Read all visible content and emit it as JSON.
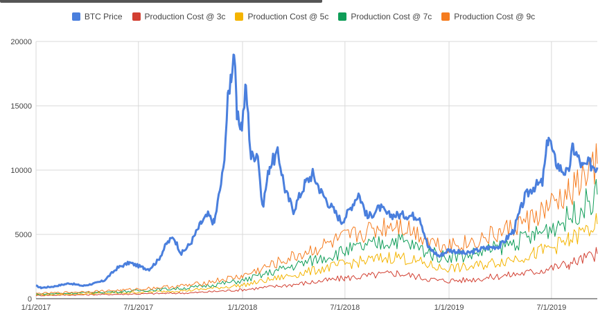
{
  "chart_data": {
    "type": "line",
    "title": "",
    "xlabel": "",
    "ylabel": "",
    "ylim": [
      0,
      20000
    ],
    "xlim": [
      "2017-01-01",
      "2019-09-20"
    ],
    "y_ticks": [
      "0",
      "5000",
      "10000",
      "15000",
      "20000"
    ],
    "x_ticks": [
      {
        "date": "2017-01-01",
        "label": "1/1/2017"
      },
      {
        "date": "2017-07-01",
        "label": "7/1/2017"
      },
      {
        "date": "2018-01-01",
        "label": "1/1/2018"
      },
      {
        "date": "2018-07-01",
        "label": "7/1/2018"
      },
      {
        "date": "2019-01-01",
        "label": "1/1/2019"
      },
      {
        "date": "2019-07-01",
        "label": "7/1/2019"
      }
    ],
    "grid": true,
    "legend_position": "top",
    "series": [
      {
        "name": "BTC Price",
        "color": "#4a7fdd",
        "points": [
          [
            "2017-01-01",
            1000
          ],
          [
            "2017-01-10",
            850
          ],
          [
            "2017-02-01",
            950
          ],
          [
            "2017-03-01",
            1200
          ],
          [
            "2017-03-25",
            1000
          ],
          [
            "2017-04-15",
            1200
          ],
          [
            "2017-05-01",
            1400
          ],
          [
            "2017-05-25",
            2400
          ],
          [
            "2017-06-15",
            2800
          ],
          [
            "2017-07-10",
            2400
          ],
          [
            "2017-07-20",
            2300
          ],
          [
            "2017-08-05",
            3000
          ],
          [
            "2017-08-20",
            4300
          ],
          [
            "2017-09-01",
            4800
          ],
          [
            "2017-09-15",
            3500
          ],
          [
            "2017-10-01",
            4300
          ],
          [
            "2017-10-20",
            5900
          ],
          [
            "2017-11-01",
            6500
          ],
          [
            "2017-11-12",
            5900
          ],
          [
            "2017-11-28",
            10000
          ],
          [
            "2017-12-07",
            16000
          ],
          [
            "2017-12-12",
            17500
          ],
          [
            "2017-12-17",
            19400
          ],
          [
            "2017-12-22",
            14000
          ],
          [
            "2017-12-31",
            13500
          ],
          [
            "2018-01-07",
            16500
          ],
          [
            "2018-01-16",
            11000
          ],
          [
            "2018-01-28",
            11400
          ],
          [
            "2018-02-05",
            7000
          ],
          [
            "2018-02-18",
            10400
          ],
          [
            "2018-03-05",
            11300
          ],
          [
            "2018-03-18",
            8300
          ],
          [
            "2018-04-01",
            6900
          ],
          [
            "2018-04-22",
            9000
          ],
          [
            "2018-05-05",
            9700
          ],
          [
            "2018-05-20",
            8300
          ],
          [
            "2018-06-01",
            7500
          ],
          [
            "2018-06-25",
            6000
          ],
          [
            "2018-07-05",
            6600
          ],
          [
            "2018-07-25",
            8200
          ],
          [
            "2018-08-10",
            6300
          ],
          [
            "2018-09-01",
            7100
          ],
          [
            "2018-09-15",
            6500
          ],
          [
            "2018-10-15",
            6500
          ],
          [
            "2018-11-10",
            6400
          ],
          [
            "2018-11-25",
            4000
          ],
          [
            "2018-12-15",
            3300
          ],
          [
            "2018-12-31",
            3800
          ],
          [
            "2019-02-01",
            3500
          ],
          [
            "2019-03-01",
            3900
          ],
          [
            "2019-04-01",
            4100
          ],
          [
            "2019-04-25",
            5300
          ],
          [
            "2019-05-15",
            7900
          ],
          [
            "2019-05-30",
            8700
          ],
          [
            "2019-06-15",
            9000
          ],
          [
            "2019-06-26",
            12800
          ],
          [
            "2019-07-05",
            11000
          ],
          [
            "2019-07-15",
            10200
          ],
          [
            "2019-07-30",
            9700
          ],
          [
            "2019-08-08",
            11800
          ],
          [
            "2019-08-25",
            10200
          ],
          [
            "2019-09-05",
            10500
          ],
          [
            "2019-09-20",
            10200
          ]
        ]
      },
      {
        "name": "Production Cost @ 3c",
        "color": "#d23f31",
        "points": [
          [
            "2017-01-01",
            250
          ],
          [
            "2017-06-01",
            350
          ],
          [
            "2017-10-01",
            450
          ],
          [
            "2018-01-01",
            700
          ],
          [
            "2018-04-01",
            1100
          ],
          [
            "2018-07-01",
            1600
          ],
          [
            "2018-10-01",
            2000
          ],
          [
            "2018-12-15",
            1400
          ],
          [
            "2019-02-01",
            1450
          ],
          [
            "2019-04-01",
            1750
          ],
          [
            "2019-06-01",
            2100
          ],
          [
            "2019-08-01",
            2700
          ],
          [
            "2019-09-20",
            3500
          ]
        ]
      },
      {
        "name": "Production Cost @ 5c",
        "color": "#f4b400",
        "points": [
          [
            "2017-01-01",
            300
          ],
          [
            "2017-06-01",
            450
          ],
          [
            "2017-10-01",
            650
          ],
          [
            "2018-01-01",
            1050
          ],
          [
            "2018-04-01",
            1850
          ],
          [
            "2018-07-01",
            2700
          ],
          [
            "2018-10-01",
            3300
          ],
          [
            "2018-12-15",
            2400
          ],
          [
            "2019-02-01",
            2400
          ],
          [
            "2019-04-01",
            2900
          ],
          [
            "2019-06-01",
            3500
          ],
          [
            "2019-08-01",
            4500
          ],
          [
            "2019-09-20",
            5800
          ]
        ]
      },
      {
        "name": "Production Cost @ 7c",
        "color": "#0f9d58",
        "points": [
          [
            "2017-01-01",
            350
          ],
          [
            "2017-06-01",
            550
          ],
          [
            "2017-10-01",
            850
          ],
          [
            "2018-01-01",
            1400
          ],
          [
            "2018-04-01",
            2550
          ],
          [
            "2018-07-01",
            3700
          ],
          [
            "2018-10-01",
            4600
          ],
          [
            "2018-12-15",
            3300
          ],
          [
            "2019-02-01",
            3350
          ],
          [
            "2019-04-01",
            4000
          ],
          [
            "2019-06-01",
            4900
          ],
          [
            "2019-08-01",
            6300
          ],
          [
            "2019-09-20",
            8100
          ]
        ]
      },
      {
        "name": "Production Cost @ 9c",
        "color": "#f57c1f",
        "points": [
          [
            "2017-01-01",
            400
          ],
          [
            "2017-06-01",
            650
          ],
          [
            "2017-10-01",
            1050
          ],
          [
            "2018-01-01",
            1750
          ],
          [
            "2018-04-01",
            3250
          ],
          [
            "2018-07-01",
            4700
          ],
          [
            "2018-10-01",
            5900
          ],
          [
            "2018-12-15",
            4200
          ],
          [
            "2019-02-01",
            4300
          ],
          [
            "2019-04-01",
            5100
          ],
          [
            "2019-06-01",
            6300
          ],
          [
            "2019-08-01",
            8100
          ],
          [
            "2019-09-20",
            10500
          ]
        ]
      }
    ]
  }
}
